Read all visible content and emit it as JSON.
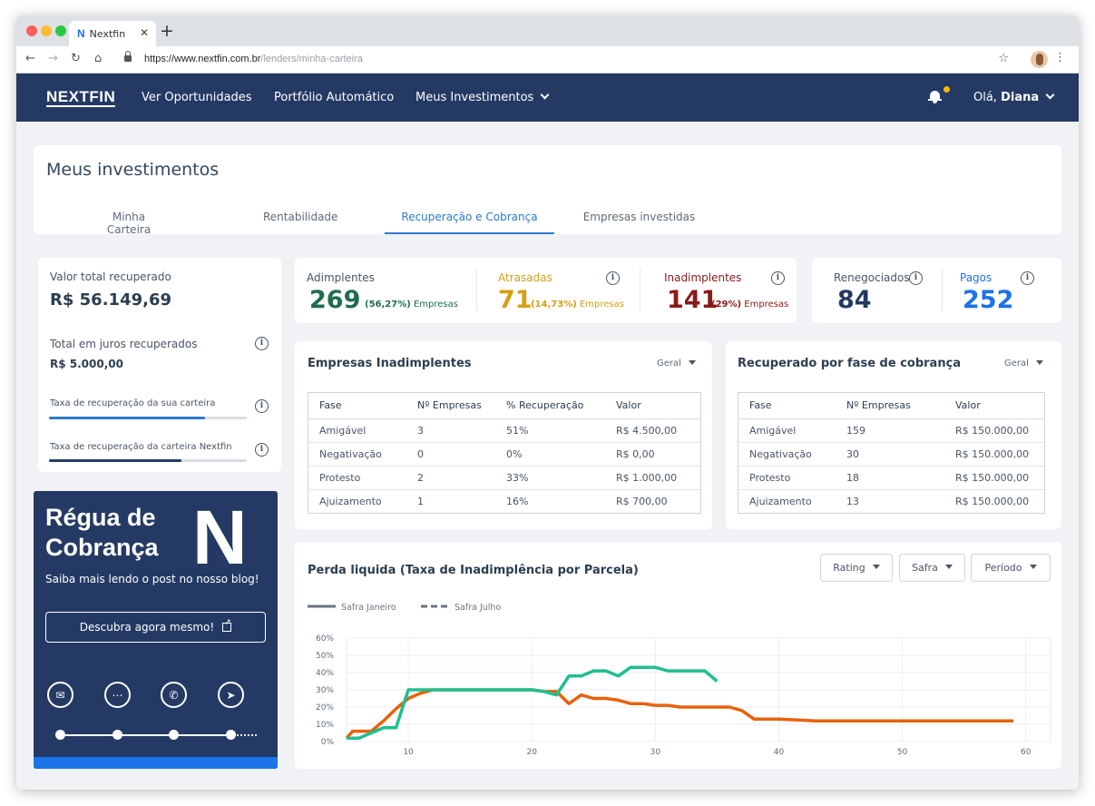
{
  "browser": {
    "tab_title": "Nextfin",
    "tab_logo": "N",
    "url_host": "https://www.nextfin.com.br",
    "url_path": "/lenders/minha-carteira",
    "window_colors": [
      "#ff5f57",
      "#febc2e",
      "#28c840"
    ]
  },
  "header": {
    "brand": "NEXTFIN",
    "nav": [
      "Ver Oportunidades",
      "Portfólio Automático",
      "Meus Investimentos"
    ],
    "greeting": "Olá,",
    "user": "Diana"
  },
  "page": {
    "title": "Meus investimentos",
    "tabs": [
      "Minha Carteira",
      "Rentabilidade",
      "Recuperação e Cobrança",
      "Empresas investidas"
    ],
    "active_tab": "Recuperação e Cobrança"
  },
  "summary": {
    "total_label": "Valor total recuperado",
    "total_value": "R$ 56.149,69",
    "juros_label": "Total em juros recuperados",
    "juros_value": "R$ 5.000,00",
    "rate_own_label": "Taxa de recuperação da sua carteira",
    "rate_own_progress": 0.79,
    "rate_nextfin_label": "Taxa de recuperação da carteira Nextfin",
    "rate_nextfin_progress": 0.67
  },
  "stats": {
    "adimplentes": {
      "label": "Adimplentes",
      "value": "269",
      "pct": "(56,27%)",
      "unit": "Empresas",
      "color": "#1e6e4a"
    },
    "atrasadas": {
      "label": "Atrasadas",
      "value": "71",
      "pct": "(14,73%)",
      "unit": "Empresas",
      "color": "#d4a017"
    },
    "inadimplentes": {
      "label": "Inadimplentes",
      "value": "141",
      "pct": "(29%)",
      "unit": "Empresas",
      "color": "#8b1a1a"
    },
    "renegociados": {
      "label": "Renegociados",
      "value": "84"
    },
    "pagos": {
      "label": "Pagos",
      "value": "252",
      "color": "#1a73e8"
    }
  },
  "inadimplentes_table": {
    "title": "Empresas Inadimplentes",
    "filter": "Geral",
    "headers": [
      "Fase",
      "Nº Empresas",
      "% Recuperação",
      "Valor"
    ],
    "rows": [
      [
        "Amigável",
        "3",
        "51%",
        "R$ 4.500,00"
      ],
      [
        "Negativação",
        "0",
        "0%",
        "R$ 0,00"
      ],
      [
        "Protesto",
        "2",
        "33%",
        "R$ 1.000,00"
      ],
      [
        "Ajuizamento",
        "1",
        "16%",
        "R$ 700,00"
      ]
    ]
  },
  "fase_table": {
    "title": "Recuperado por fase de cobrança",
    "filter": "Geral",
    "headers": [
      "Fase",
      "Nº Empresas",
      "Valor"
    ],
    "rows": [
      [
        "Amigável",
        "159",
        "R$ 150.000,00"
      ],
      [
        "Negativação",
        "30",
        "R$ 150.000,00"
      ],
      [
        "Protesto",
        "18",
        "R$ 150.000,00"
      ],
      [
        "Ajuizamento",
        "13",
        "R$ 150.000,00"
      ]
    ]
  },
  "chart_section": {
    "title": "Perda liquida (Taxa de Inadimplência por Parcela)",
    "filters": [
      "Rating",
      "Safra",
      "Período"
    ]
  },
  "promo": {
    "title_line1": "Régua de",
    "title_line2": "Cobrança",
    "logo": "N",
    "subtitle": "Saiba mais lendo o post no nosso blog!",
    "button": "Descubra agora mesmo!"
  },
  "chart_data": {
    "type": "line",
    "title": "",
    "xlabel": "",
    "ylabel": "",
    "xlim": [
      5,
      62
    ],
    "ylim": [
      0,
      60
    ],
    "x_ticks": [
      10,
      20,
      30,
      40,
      50,
      60
    ],
    "y_ticks": [
      0,
      10,
      20,
      30,
      40,
      50,
      60
    ],
    "y_tick_labels": [
      "0%",
      "10%",
      "20%",
      "30%",
      "40%",
      "50%",
      "60%"
    ],
    "grid": true,
    "legend": [
      "Safra Janeiro",
      "Safra Julho"
    ],
    "legend_position": "top-left",
    "series": [
      {
        "name": "Safra Janeiro",
        "color": "#1fbf8f",
        "x": [
          5,
          6,
          7,
          8,
          9,
          10,
          15,
          20,
          21,
          22,
          23,
          24,
          25,
          26,
          27,
          28,
          29,
          30,
          31,
          32,
          33,
          34,
          35
        ],
        "y": [
          2,
          2,
          5,
          8,
          8,
          30,
          30,
          30,
          29,
          27,
          38,
          38,
          41,
          41,
          38,
          43,
          43,
          43,
          41,
          41,
          41,
          41,
          35
        ]
      },
      {
        "name": "Safra Julho",
        "color": "#e8620c",
        "x": [
          5,
          5.5,
          7,
          8,
          9,
          10,
          11,
          12,
          15,
          20,
          21,
          22,
          23,
          24,
          25,
          26,
          27,
          28,
          29,
          30,
          31,
          32,
          33,
          34,
          35,
          36,
          37,
          38,
          40,
          43,
          45,
          50,
          55,
          59
        ],
        "y": [
          2,
          6,
          6,
          12,
          19,
          25,
          28,
          30,
          30,
          30,
          29,
          29,
          22,
          27,
          25,
          25,
          24,
          22,
          22,
          21,
          21,
          20,
          20,
          20,
          20,
          20,
          18,
          13,
          13,
          12,
          12,
          12,
          12,
          12
        ]
      }
    ]
  }
}
